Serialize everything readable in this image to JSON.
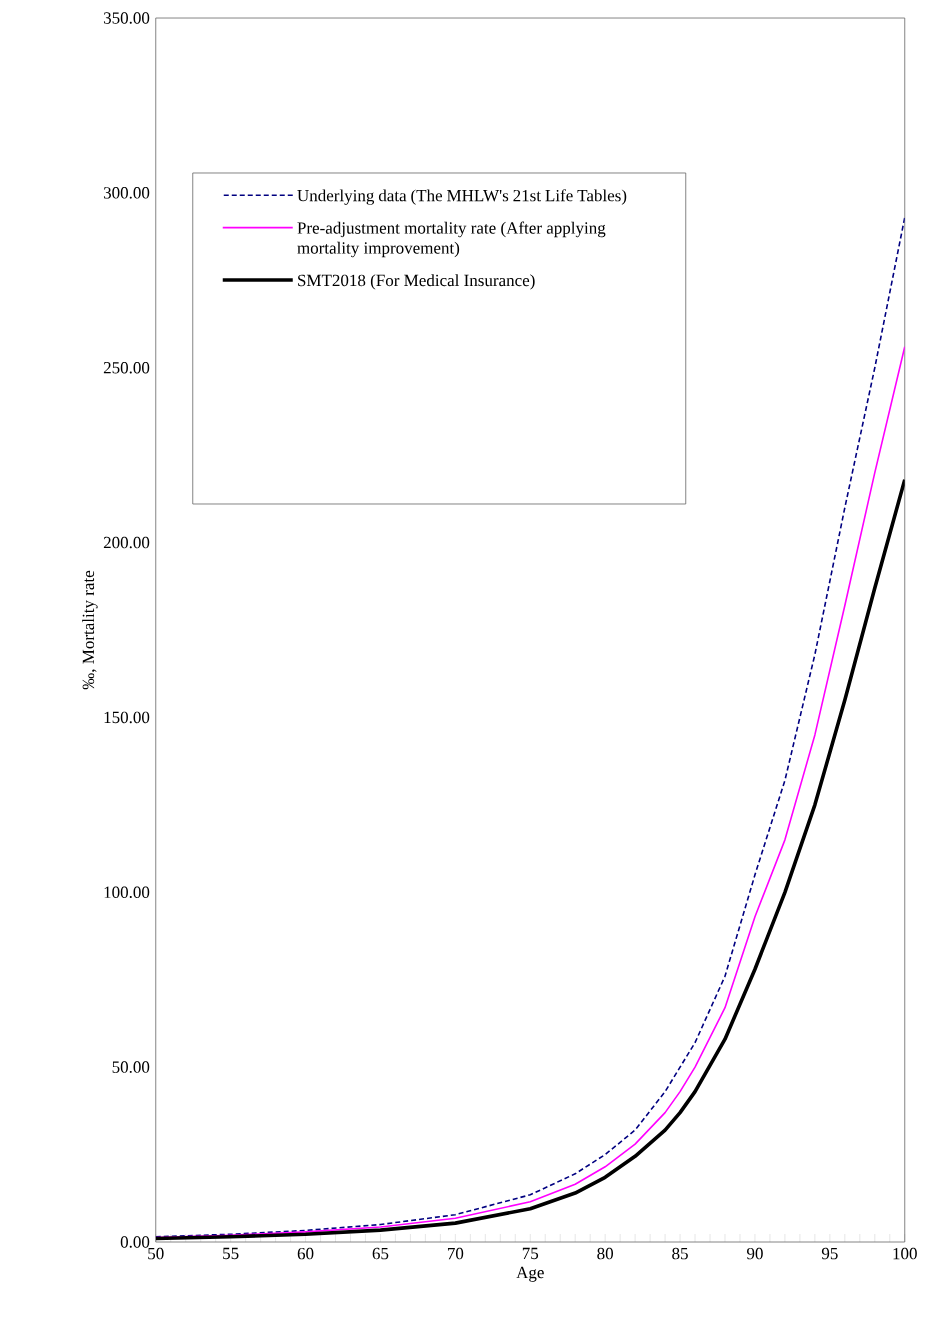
{
  "chart_data": {
    "type": "line",
    "xlabel": "Age",
    "ylabel": "‰, Mortality rate",
    "x": [
      50,
      55,
      60,
      65,
      70,
      75,
      78,
      80,
      82,
      84,
      85,
      86,
      88,
      90,
      92,
      94,
      96,
      98,
      100
    ],
    "series": [
      {
        "name": "Underlying data (The MHLW's 21st Life Tables)",
        "color": "#000080",
        "line_style": "dashed",
        "values": [
          1.5,
          2.2,
          3.3,
          5.0,
          7.8,
          13.5,
          19.5,
          25,
          32,
          43,
          50,
          57,
          76,
          105,
          132,
          168,
          210,
          250,
          293
        ]
      },
      {
        "name": "Pre-adjustment mortality rate (After applying mortality improvement)",
        "color": "#ff00ff",
        "line_style": "solid",
        "values": [
          1.3,
          1.9,
          2.9,
          4.3,
          6.8,
          11.5,
          16.5,
          21.5,
          28,
          37,
          43,
          50,
          67,
          93,
          115,
          145,
          182,
          220,
          256
        ]
      },
      {
        "name": "SMT2018 (For Medical Insurance)",
        "color": "#000000",
        "line_style": "solid",
        "values": [
          1.0,
          1.5,
          2.2,
          3.4,
          5.4,
          9.5,
          14,
          18.5,
          24.5,
          32,
          37,
          43,
          58,
          78,
          100,
          125,
          155,
          187,
          218
        ]
      }
    ],
    "xlim": [
      50,
      100
    ],
    "xticks": [
      50,
      {
        "value": 51,
        "label": null
      },
      {
        "value": 52,
        "label": null
      },
      {
        "value": 53,
        "label": null
      },
      {
        "value": 54,
        "label": null
      },
      55,
      {
        "value": 56,
        "label": null
      },
      {
        "value": 57,
        "label": null
      },
      {
        "value": 58,
        "label": null
      },
      {
        "value": 59,
        "label": null
      },
      60,
      {
        "value": 61,
        "label": null
      },
      {
        "value": 62,
        "label": null
      },
      {
        "value": 63,
        "label": null
      },
      {
        "value": 64,
        "label": null
      },
      65,
      {
        "value": 66,
        "label": null
      },
      {
        "value": 67,
        "label": null
      },
      {
        "value": 68,
        "label": null
      },
      {
        "value": 69,
        "label": null
      },
      70,
      {
        "value": 71,
        "label": null
      },
      {
        "value": 72,
        "label": null
      },
      {
        "value": 73,
        "label": null
      },
      {
        "value": 74,
        "label": null
      },
      75,
      {
        "value": 76,
        "label": null
      },
      {
        "value": 77,
        "label": null
      },
      {
        "value": 78,
        "label": null
      },
      {
        "value": 79,
        "label": null
      },
      80,
      {
        "value": 81,
        "label": null
      },
      {
        "value": 82,
        "label": null
      },
      {
        "value": 83,
        "label": null
      },
      {
        "value": 84,
        "label": null
      },
      85,
      {
        "value": 86,
        "label": null
      },
      {
        "value": 87,
        "label": null
      },
      {
        "value": 88,
        "label": null
      },
      {
        "value": 89,
        "label": null
      },
      90,
      {
        "value": 91,
        "label": null
      },
      {
        "value": 92,
        "label": null
      },
      {
        "value": 93,
        "label": null
      },
      {
        "value": 94,
        "label": null
      },
      95,
      {
        "value": 96,
        "label": null
      },
      {
        "value": 97,
        "label": null
      },
      {
        "value": 98,
        "label": null
      },
      {
        "value": 99,
        "label": null
      },
      100
    ],
    "ylim": [
      0,
      350
    ],
    "yticks": [
      {
        "value": 0,
        "label": "0.00"
      },
      {
        "value": 50,
        "label": "50.00"
      },
      {
        "value": 100,
        "label": "100.00"
      },
      {
        "value": 150,
        "label": "150.00"
      },
      {
        "value": 200,
        "label": "200.00"
      },
      {
        "value": 250,
        "label": "250.00"
      },
      {
        "value": 300,
        "label": "300.00"
      },
      {
        "value": 350,
        "label": "350.00"
      }
    ],
    "legend": "top left"
  }
}
